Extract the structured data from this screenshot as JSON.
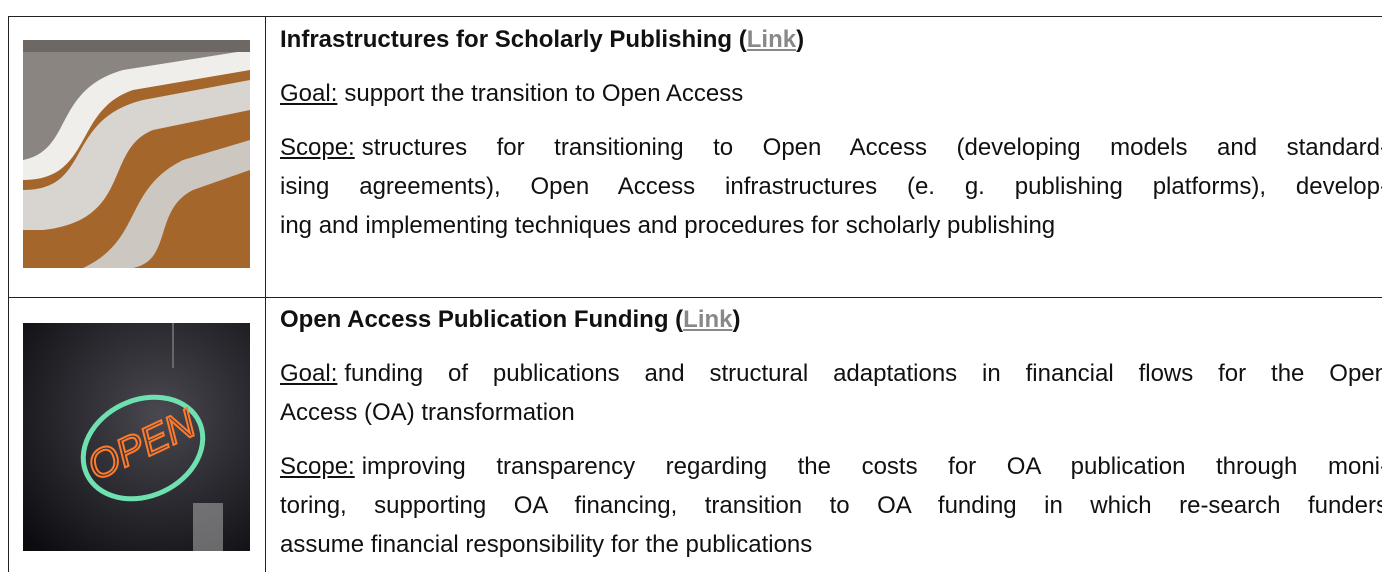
{
  "table": {
    "rows": [
      {
        "title": "Infrastructures for Scholarly Publishing (",
        "link": "Link",
        "title_end": ")",
        "goal": {
          "label": "Goal:",
          "lines": [
            "support the transition to Open Access"
          ]
        },
        "scope": {
          "label": "Scope:",
          "lines": [
            "structures for transitioning to Open Access (developing models and standard-",
            "ising agreements), Open Access infrastructures (e. g. publishing platforms), develop-",
            "ing and implementing techniques and procedures for scholarly publishing"
          ]
        }
      },
      {
        "title": "Open Access Publication Funding (",
        "link": "Link",
        "title_end": ")",
        "image_text": "OPEN",
        "goal": {
          "label": "Goal:",
          "lines": [
            "funding of publications and structural adaptations in financial flows for the Open",
            "Access (OA) transformation"
          ]
        },
        "scope": {
          "label": "Scope:",
          "lines": [
            "improving transparency regarding the costs for OA publication through moni-",
            "toring, supporting OA financing, transition to OA funding in which re-search funders",
            "assume financial responsibility for the publications"
          ]
        }
      }
    ]
  }
}
